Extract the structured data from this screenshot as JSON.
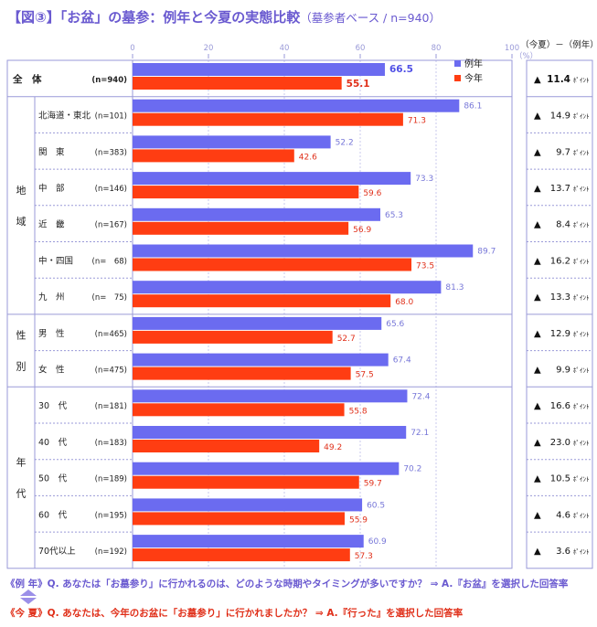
{
  "title": {
    "main": "【図③】「お盆」の墓参：例年と今夏の実態比較",
    "sub": "（墓参者ベース / n=940）"
  },
  "chart_data": {
    "type": "bar",
    "orientation": "horizontal",
    "axis": {
      "min": 0,
      "max": 100,
      "ticks": [
        0,
        20,
        40,
        60,
        80,
        100
      ],
      "unit": "（%）"
    },
    "grid": true,
    "legend": {
      "placement": "top-right"
    },
    "series": [
      {
        "name": "例年",
        "color": "#6b6bf0"
      },
      {
        "name": "今年",
        "color": "#ff3d12"
      }
    ],
    "diff_header": "（今夏）－（例年）",
    "diff_unit": "ﾎﾟｲﾝﾄ",
    "diff_marker": "▲",
    "rows": [
      {
        "group": "全　体",
        "label": "",
        "n": "(n=940)",
        "v1": 66.5,
        "v2": 55.1,
        "diff": "11.4",
        "total": true
      },
      {
        "group": "地域",
        "label": "北海道・東北",
        "n": "(n=101)",
        "v1": 86.1,
        "v2": 71.3,
        "diff": "14.9"
      },
      {
        "group": "地域",
        "label": "関　東",
        "n": "(n=383)",
        "v1": 52.2,
        "v2": 42.6,
        "diff": "9.7"
      },
      {
        "group": "地域",
        "label": "中　部",
        "n": "(n=146)",
        "v1": 73.3,
        "v2": 59.6,
        "diff": "13.7"
      },
      {
        "group": "地域",
        "label": "近　畿",
        "n": "(n=167)",
        "v1": 65.3,
        "v2": 56.9,
        "diff": "8.4"
      },
      {
        "group": "地域",
        "label": "中・四国",
        "n": "(n=　68)",
        "v1": 89.7,
        "v2": 73.5,
        "diff": "16.2"
      },
      {
        "group": "地域",
        "label": "九　州",
        "n": "(n=　75)",
        "v1": 81.3,
        "v2": 68.0,
        "diff": "13.3"
      },
      {
        "group": "性別",
        "label": "男　性",
        "n": "(n=465)",
        "v1": 65.6,
        "v2": 52.7,
        "diff": "12.9"
      },
      {
        "group": "性別",
        "label": "女　性",
        "n": "(n=475)",
        "v1": 67.4,
        "v2": 57.5,
        "diff": "9.9"
      },
      {
        "group": "年代",
        "label": "30　代",
        "n": "(n=181)",
        "v1": 72.4,
        "v2": 55.8,
        "diff": "16.6"
      },
      {
        "group": "年代",
        "label": "40　代",
        "n": "(n=183)",
        "v1": 72.1,
        "v2": 49.2,
        "diff": "23.0"
      },
      {
        "group": "年代",
        "label": "50　代",
        "n": "(n=189)",
        "v1": 70.2,
        "v2": 59.7,
        "diff": "10.5"
      },
      {
        "group": "年代",
        "label": "60　代",
        "n": "(n=195)",
        "v1": 60.5,
        "v2": 55.9,
        "diff": "4.6"
      },
      {
        "group": "年代",
        "label": "70代以上",
        "n": "(n=192)",
        "v1": 60.9,
        "v2": 57.3,
        "diff": "3.6"
      }
    ],
    "groups": [
      {
        "name": "地域",
        "chars": [
          "地",
          "域"
        ]
      },
      {
        "name": "性別",
        "chars": [
          "性",
          "別"
        ]
      },
      {
        "name": "年代",
        "chars": [
          "年",
          "代"
        ]
      }
    ]
  },
  "footnotes": {
    "line1": "《例 年》Q. あなたは「お墓参り」に行かれるのは、どのような時期やタイミングが多いですか？ ⇒ A.『お盆』を選択した回答率",
    "line2": "《今 夏》Q. あなたは、今年のお盆に「お墓参り」に行かれましたか？ ⇒ A.『行った』を選択した回答率"
  }
}
